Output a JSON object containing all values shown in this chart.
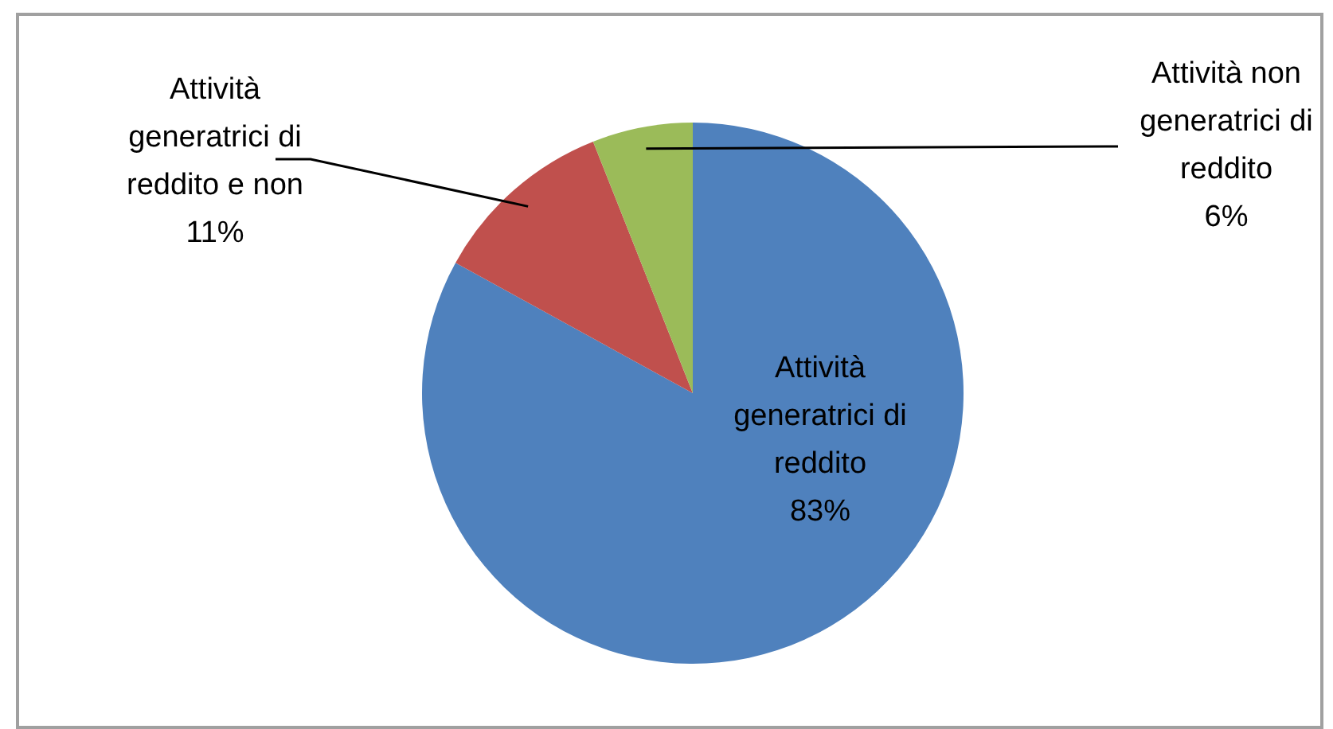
{
  "chart_data": {
    "type": "pie",
    "categories": [
      "Attività generatrici di reddito",
      "Attività generatrici di reddito e non",
      "Attività non generatrici di reddito"
    ],
    "values": [
      83,
      11,
      6
    ],
    "colors": [
      "#4f81bd",
      "#c0504d",
      "#9bbb59"
    ],
    "value_labels": [
      "83%",
      "11%",
      "6%"
    ]
  }
}
